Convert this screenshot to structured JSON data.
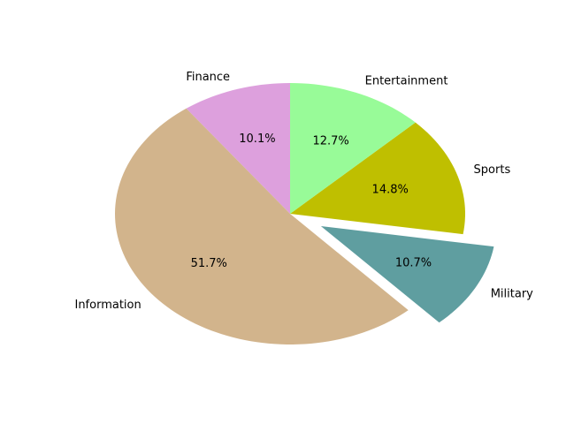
{
  "chart_data": {
    "type": "pie",
    "title": "",
    "start_angle_deg": 90,
    "direction": "counterclockwise",
    "slices": [
      {
        "label": "Finance",
        "value": 10.1,
        "pct_text": "10.1%",
        "color": "#dda0dd",
        "exploded": false
      },
      {
        "label": "Information",
        "value": 51.7,
        "pct_text": "51.7%",
        "color": "#d2b48c",
        "exploded": false
      },
      {
        "label": "Military",
        "value": 10.7,
        "pct_text": "10.7%",
        "color": "#5f9ea0",
        "exploded": true
      },
      {
        "label": "Sports",
        "value": 14.8,
        "pct_text": "14.8%",
        "color": "#bfbf00",
        "exploded": false
      },
      {
        "label": "Entertainment",
        "value": 12.7,
        "pct_text": "12.7%",
        "color": "#98fb98",
        "exploded": false
      }
    ]
  }
}
